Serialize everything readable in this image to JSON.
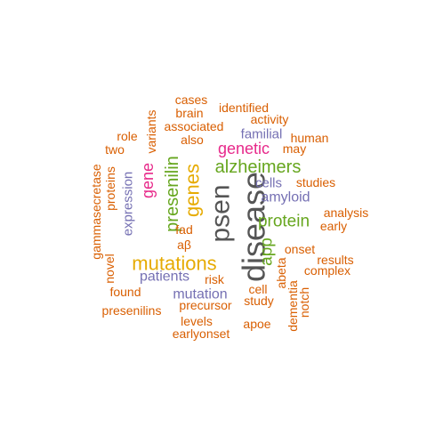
{
  "palette": {
    "orange": "#D95F02",
    "gray": "#555555",
    "purple": "#7570B3",
    "magenta": "#E7298A",
    "green": "#66A61E",
    "gold": "#E6AB02"
  },
  "words": [
    {
      "text": "disease",
      "color": "gray"
    },
    {
      "text": "psen",
      "color": "gray"
    },
    {
      "text": "mutations",
      "color": "gold"
    },
    {
      "text": "alzheimers",
      "color": "green"
    },
    {
      "text": "genes",
      "color": "gold"
    },
    {
      "text": "presenilin",
      "color": "green"
    },
    {
      "text": "protein",
      "color": "green"
    },
    {
      "text": "app",
      "color": "green"
    },
    {
      "text": "genetic",
      "color": "magenta"
    },
    {
      "text": "gene",
      "color": "magenta"
    },
    {
      "text": "amyloid",
      "color": "purple"
    },
    {
      "text": "patients",
      "color": "purple"
    },
    {
      "text": "mutation",
      "color": "purple"
    },
    {
      "text": "cells",
      "color": "purple"
    },
    {
      "text": "familial",
      "color": "purple"
    },
    {
      "text": "expression",
      "color": "purple"
    },
    {
      "text": "cases",
      "color": "orange"
    },
    {
      "text": "brain",
      "color": "orange"
    },
    {
      "text": "identified",
      "color": "orange"
    },
    {
      "text": "activity",
      "color": "orange"
    },
    {
      "text": "associated",
      "color": "orange"
    },
    {
      "text": "role",
      "color": "orange"
    },
    {
      "text": "variants",
      "color": "orange"
    },
    {
      "text": "also",
      "color": "orange"
    },
    {
      "text": "human",
      "color": "orange"
    },
    {
      "text": "two",
      "color": "orange"
    },
    {
      "text": "may",
      "color": "orange"
    },
    {
      "text": "proteins",
      "color": "orange"
    },
    {
      "text": "studies",
      "color": "orange"
    },
    {
      "text": "analysis",
      "color": "orange"
    },
    {
      "text": "early",
      "color": "orange"
    },
    {
      "text": "gammasecretase",
      "color": "orange"
    },
    {
      "text": "fad",
      "color": "orange"
    },
    {
      "text": "aβ",
      "color": "orange"
    },
    {
      "text": "onset",
      "color": "orange"
    },
    {
      "text": "novel",
      "color": "orange"
    },
    {
      "text": "results",
      "color": "orange"
    },
    {
      "text": "complex",
      "color": "orange"
    },
    {
      "text": "abeta",
      "color": "orange"
    },
    {
      "text": "risk",
      "color": "orange"
    },
    {
      "text": "found",
      "color": "orange"
    },
    {
      "text": "cell",
      "color": "orange"
    },
    {
      "text": "dementia",
      "color": "orange"
    },
    {
      "text": "notch",
      "color": "orange"
    },
    {
      "text": "study",
      "color": "orange"
    },
    {
      "text": "presenilins",
      "color": "orange"
    },
    {
      "text": "precursor",
      "color": "orange"
    },
    {
      "text": "levels",
      "color": "orange"
    },
    {
      "text": "apoe",
      "color": "orange"
    },
    {
      "text": "earlyonset",
      "color": "orange"
    }
  ]
}
